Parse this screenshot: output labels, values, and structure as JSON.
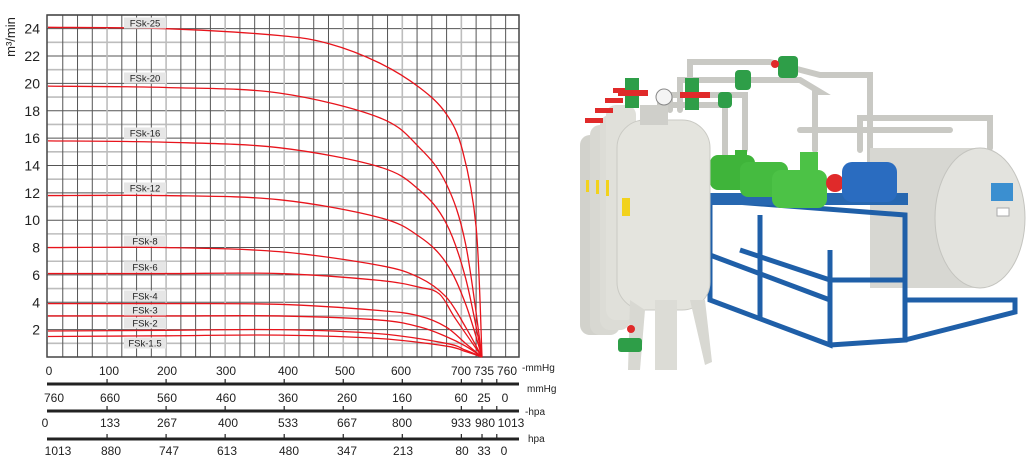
{
  "chart_data": {
    "type": "line",
    "ylabel": "m³/min",
    "ylim": [
      0,
      25
    ],
    "xlim": [
      0,
      795
    ],
    "grid": true,
    "y_ticks": [
      "2",
      "4",
      "6",
      "8",
      "10",
      "12",
      "14",
      "16",
      "18",
      "20",
      "22",
      "24"
    ],
    "x_scales": [
      {
        "unit": "-mmHg",
        "ticks": [
          "0",
          "100",
          "200",
          "300",
          "400",
          "500",
          "600",
          "700",
          "735",
          "760"
        ]
      },
      {
        "unit": "mmHg",
        "ticks": [
          "760",
          "660",
          "560",
          "460",
          "360",
          "260",
          "160",
          "60",
          "25",
          "0"
        ]
      },
      {
        "unit": "-hpa",
        "ticks": [
          "0",
          "133",
          "267",
          "400",
          "533",
          "667",
          "800",
          "933",
          "980",
          "1013"
        ]
      },
      {
        "unit": "hpa",
        "ticks": [
          "1013",
          "880",
          "747",
          "613",
          "480",
          "347",
          "213",
          "80",
          "33",
          "0"
        ]
      }
    ],
    "x_tick_values_mmHg": [
      0,
      100,
      200,
      300,
      400,
      500,
      600,
      700,
      735,
      760
    ],
    "series_color": "#e8141c",
    "series": [
      {
        "name": "FSk-25",
        "x": [
          0,
          200,
          391,
          476,
          561,
          629,
          674,
          702,
          725,
          735
        ],
        "y": [
          24.1,
          24.0,
          23.5,
          22.9,
          21.5,
          19.7,
          17.8,
          15.1,
          9.5,
          0
        ]
      },
      {
        "name": "FSk-20",
        "x": [
          0,
          200,
          391,
          561,
          629,
          674,
          707,
          735
        ],
        "y": [
          19.8,
          19.7,
          19.3,
          17.5,
          15.3,
          12.7,
          8.3,
          0
        ]
      },
      {
        "name": "FSk-16",
        "x": [
          0,
          200,
          391,
          561,
          629,
          674,
          707,
          735
        ],
        "y": [
          15.8,
          15.7,
          15.3,
          13.9,
          12.2,
          9.8,
          5.8,
          0
        ]
      },
      {
        "name": "FSk-12",
        "x": [
          0,
          200,
          391,
          561,
          629,
          674,
          707,
          735
        ],
        "y": [
          11.8,
          11.8,
          11.5,
          10.2,
          8.8,
          6.9,
          3.9,
          0
        ]
      },
      {
        "name": "FSk-8",
        "x": [
          0,
          200,
          391,
          561,
          629,
          674,
          707,
          735
        ],
        "y": [
          8.0,
          8.0,
          7.7,
          6.7,
          5.8,
          4.4,
          2.2,
          0
        ]
      },
      {
        "name": "FSk-6",
        "x": [
          0,
          200,
          391,
          561,
          629,
          663,
          690,
          735
        ],
        "y": [
          6.1,
          6.1,
          6.1,
          5.6,
          5.1,
          4.6,
          2.8,
          0
        ]
      },
      {
        "name": "FSk-4",
        "x": [
          0,
          200,
          391,
          561,
          629,
          674,
          707,
          735
        ],
        "y": [
          3.9,
          3.9,
          3.85,
          3.4,
          3.0,
          2.2,
          1.0,
          0
        ]
      },
      {
        "name": "FSk-3",
        "x": [
          0,
          200,
          391,
          561,
          629,
          674,
          707,
          735
        ],
        "y": [
          3.0,
          3.0,
          3.0,
          2.7,
          2.2,
          1.5,
          0.8,
          0
        ]
      },
      {
        "name": "FSk-2",
        "x": [
          0,
          200,
          391,
          561,
          674,
          707,
          735
        ],
        "y": [
          1.9,
          1.95,
          2.0,
          1.7,
          1.0,
          0.5,
          0
        ]
      },
      {
        "name": "FSk-1.5",
        "x": [
          0,
          200,
          391,
          561,
          674,
          707,
          735
        ],
        "y": [
          1.5,
          1.55,
          1.6,
          1.35,
          0.8,
          0.4,
          0
        ]
      }
    ]
  },
  "photo": {
    "colors": {
      "tank": "#dcdcd6",
      "frame": "#1f5fa8",
      "motor": "#3fb43a",
      "valve": "#e02a2a",
      "pump": "#2a6cc0"
    }
  }
}
